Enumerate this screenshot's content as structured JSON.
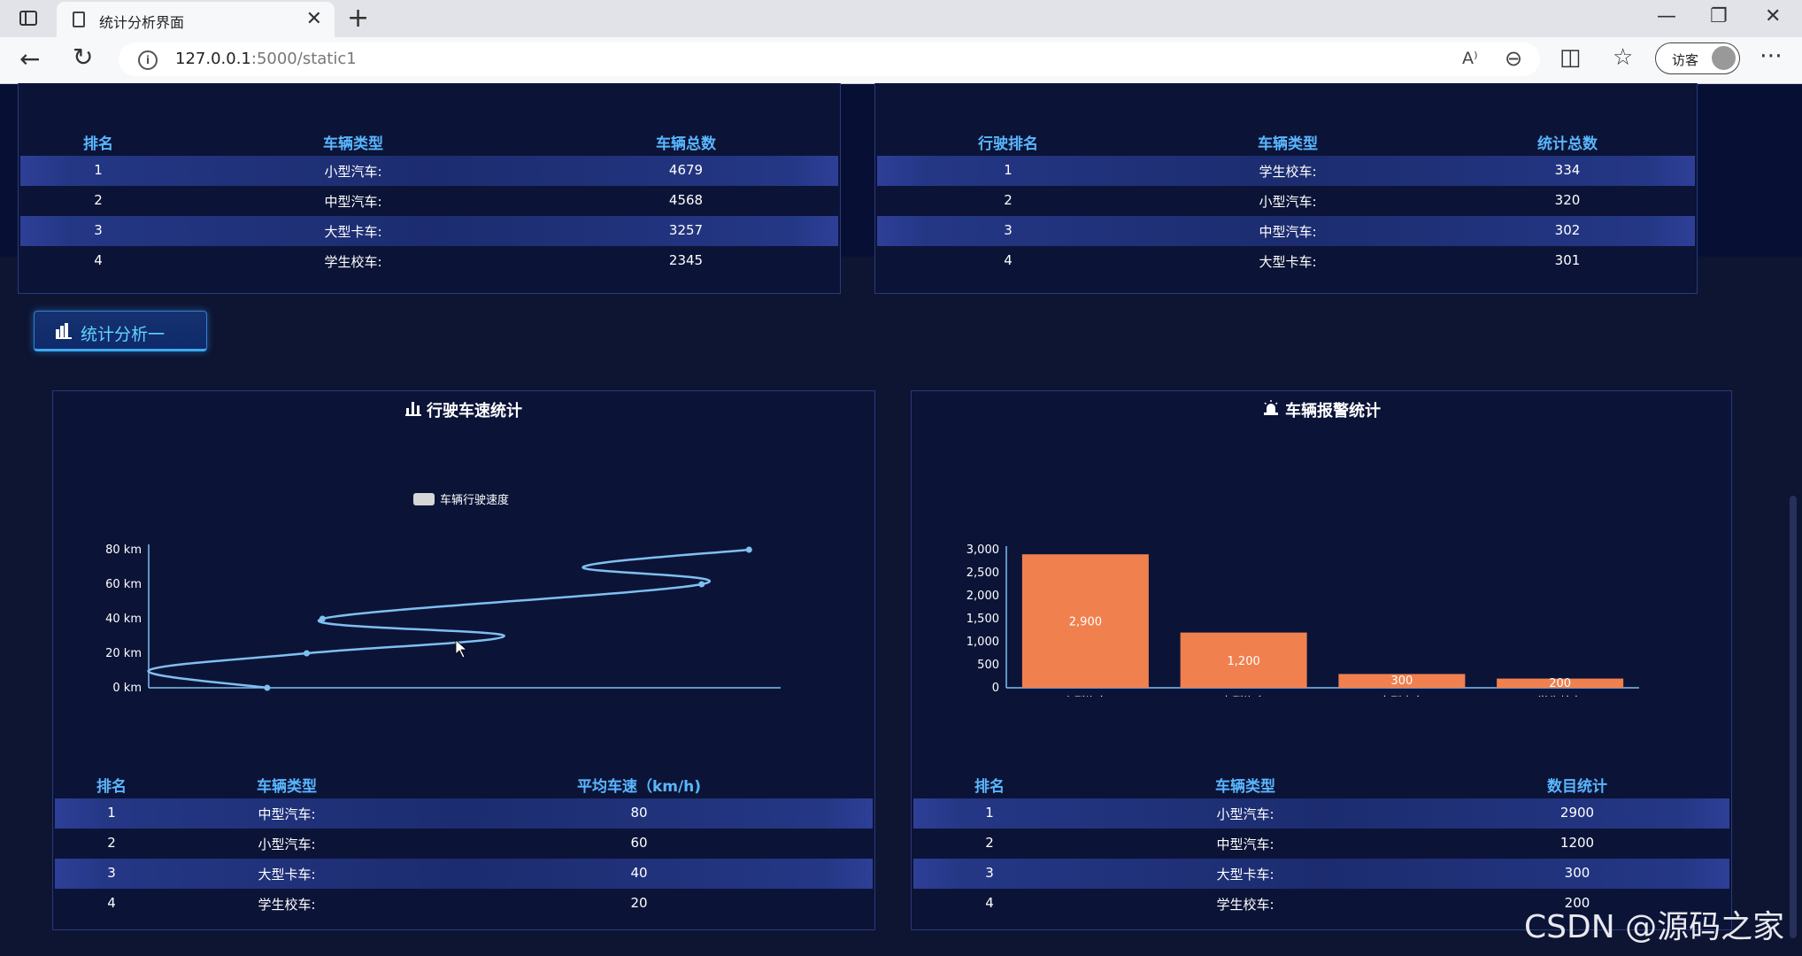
{
  "browser": {
    "tab_title": "统计分析界面",
    "close_glyph": "✕",
    "new_tab_glyph": "+",
    "url_host": "127.0.0.1",
    "url_path": ":5000/static1",
    "guest_label": "访客",
    "read_aloud_glyph": "A⁾",
    "window": {
      "minimize": "—",
      "restore": "❐",
      "close": "✕"
    },
    "icons": [
      "sidebar-icon",
      "page-icon",
      "back-arrow-icon",
      "reload-icon",
      "info-icon",
      "read-aloud-icon",
      "zoom-out-icon",
      "split-screen-icon",
      "favorites-icon",
      "avatar-icon",
      "more-icon"
    ]
  },
  "top_left_table": {
    "headers": [
      "排名",
      "车辆类型",
      "车辆总数"
    ],
    "rows": [
      [
        "1",
        "小型汽车:",
        "4679"
      ],
      [
        "2",
        "中型汽车:",
        "4568"
      ],
      [
        "3",
        "大型卡车:",
        "3257"
      ],
      [
        "4",
        "学生校车:",
        "2345"
      ]
    ]
  },
  "top_right_table": {
    "headers": [
      "行驶排名",
      "车辆类型",
      "统计总数"
    ],
    "rows": [
      [
        "1",
        "学生校车:",
        "334"
      ],
      [
        "2",
        "小型汽车:",
        "320"
      ],
      [
        "3",
        "中型汽车:",
        "302"
      ],
      [
        "4",
        "大型卡车:",
        "301"
      ]
    ]
  },
  "section_button": {
    "label": "统计分析一",
    "icon": "bar-chart-icon"
  },
  "speed_panel": {
    "title": "行驶车速统计",
    "icon": "bar-chart-icon",
    "table": {
      "headers": [
        "排名",
        "车辆类型",
        "平均车速（km/h)"
      ],
      "rows": [
        [
          "1",
          "中型汽车:",
          "80"
        ],
        [
          "2",
          "小型汽车:",
          "60"
        ],
        [
          "3",
          "大型卡车:",
          "40"
        ],
        [
          "4",
          "学生校车:",
          "20"
        ]
      ]
    }
  },
  "alarm_panel": {
    "title": "车辆报警统计",
    "icon": "alarm-light-icon",
    "table": {
      "headers": [
        "排名",
        "车辆类型",
        "数目统计"
      ],
      "rows": [
        [
          "1",
          "小型汽车:",
          "2900"
        ],
        [
          "2",
          "中型汽车:",
          "1200"
        ],
        [
          "3",
          "大型卡车:",
          "300"
        ],
        [
          "4",
          "学生校车:",
          "200"
        ]
      ]
    }
  },
  "chart_data": [
    {
      "type": "line",
      "title": "",
      "legend": [
        "车辆行驶速度"
      ],
      "legend_position": "top-center",
      "series": [
        {
          "name": "车辆行驶速度",
          "x": [
            15,
            0,
            20,
            45,
            22,
            70,
            55,
            76
          ],
          "y": [
            0,
            10,
            20,
            30,
            40,
            60,
            70,
            80
          ]
        }
      ],
      "marked_points": [
        [
          15,
          0
        ],
        [
          20,
          20
        ],
        [
          22,
          40
        ],
        [
          70,
          60
        ],
        [
          76,
          80
        ]
      ],
      "x_ticks": [
        "0",
        "20",
        "40",
        "60",
        "80"
      ],
      "y_ticks": [
        "0 km",
        "20 km",
        "40 km",
        "60 km",
        "80 km"
      ],
      "xlim": [
        0,
        80
      ],
      "ylim": [
        0,
        80
      ],
      "smooth": true,
      "color": "#80bff0"
    },
    {
      "type": "bar",
      "title": "",
      "categories": [
        "小型汽车",
        "中型汽车",
        "大型卡车",
        "学生校车"
      ],
      "values": [
        2900,
        1200,
        300,
        200
      ],
      "data_labels": [
        "2,900",
        "1,200",
        "300",
        "200"
      ],
      "y_ticks": [
        "0",
        "500",
        "1,000",
        "1,500",
        "2,000",
        "2,500",
        "3,000"
      ],
      "ylim": [
        0,
        3000
      ],
      "color": "#f1804f"
    }
  ],
  "watermark": "CSDN @源码之家"
}
